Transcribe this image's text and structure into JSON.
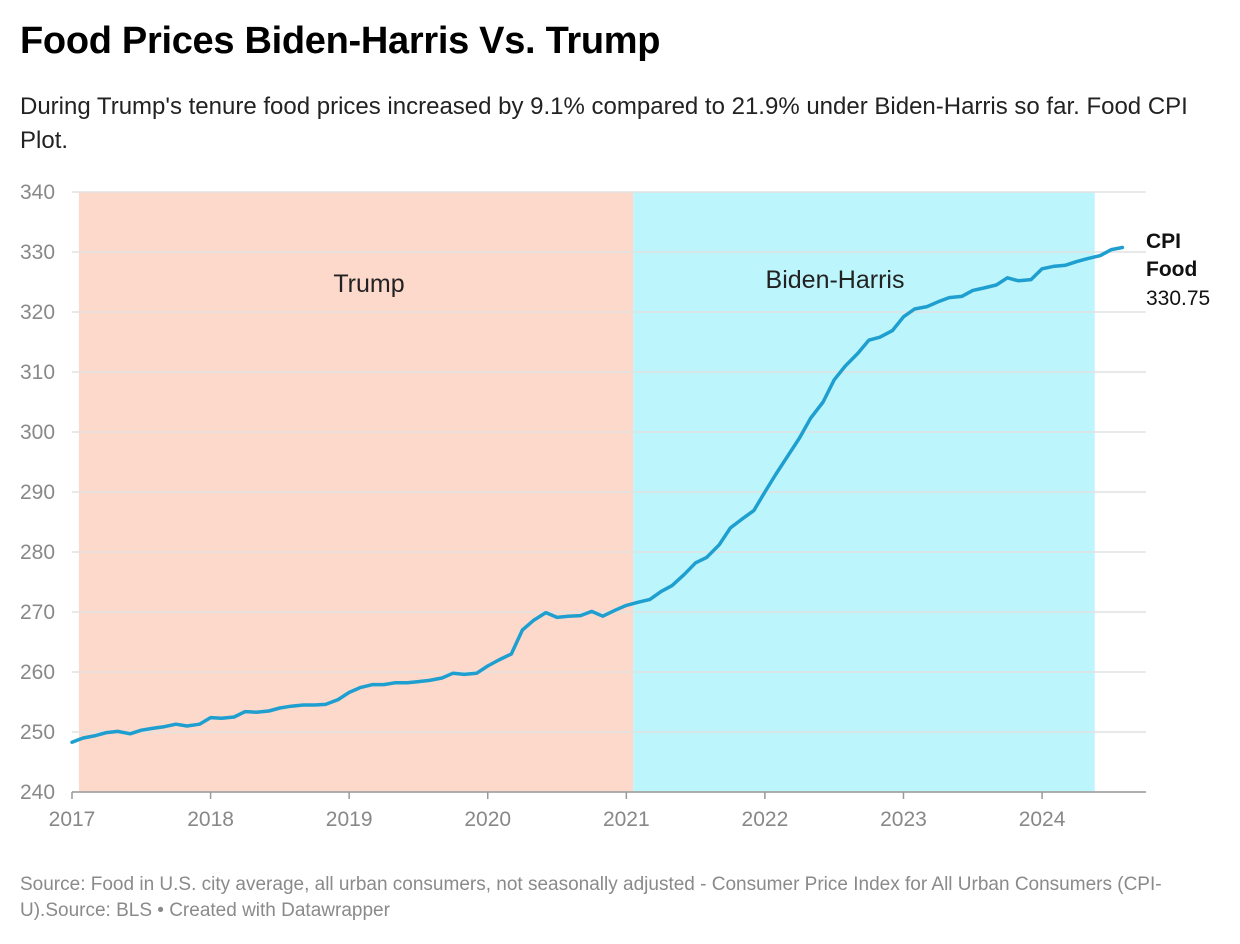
{
  "title": "Food Prices Biden-Harris Vs. Trump",
  "subtitle": "During Trump's tenure food prices increased by 9.1% compared to 21.9% under Biden-Harris so far. Food CPI Plot.",
  "source": "Source: Food in U.S. city average, all urban consumers, not seasonally adjusted - Consumer Price Index for All Urban Consumers (CPI-U).Source: BLS • Created with Datawrapper",
  "colors": {
    "line": "#1f9fcf",
    "trump_band": "#fdd9cc",
    "biden_band": "#bdf5fc",
    "grid": "#e2e2e2"
  },
  "chart_data": {
    "type": "line",
    "title": "Food Prices Biden-Harris Vs. Trump",
    "xlabel": "",
    "ylabel": "",
    "xlim": [
      2017.0,
      2024.75
    ],
    "ylim": [
      240,
      340
    ],
    "x_ticks": [
      2017,
      2018,
      2019,
      2020,
      2021,
      2022,
      2023,
      2024
    ],
    "y_ticks": [
      240,
      250,
      260,
      270,
      280,
      290,
      300,
      310,
      320,
      330,
      340
    ],
    "grid": true,
    "regions": [
      {
        "label": "Trump",
        "from": 2017.05,
        "to": 2021.05
      },
      {
        "label": "Biden-Harris",
        "from": 2021.05,
        "to": 2024.38
      }
    ],
    "series": [
      {
        "name": "CPI Food",
        "last_value": "330.75",
        "points": [
          [
            2017.0,
            248.3
          ],
          [
            2017.08,
            249.0
          ],
          [
            2017.17,
            249.4
          ],
          [
            2017.25,
            249.9
          ],
          [
            2017.33,
            250.1
          ],
          [
            2017.42,
            249.7
          ],
          [
            2017.5,
            250.3
          ],
          [
            2017.58,
            250.6
          ],
          [
            2017.67,
            250.9
          ],
          [
            2017.75,
            251.3
          ],
          [
            2017.83,
            251.0
          ],
          [
            2017.92,
            251.3
          ],
          [
            2018.0,
            252.4
          ],
          [
            2018.08,
            252.3
          ],
          [
            2018.17,
            252.5
          ],
          [
            2018.25,
            253.4
          ],
          [
            2018.33,
            253.3
          ],
          [
            2018.42,
            253.5
          ],
          [
            2018.5,
            254.0
          ],
          [
            2018.58,
            254.3
          ],
          [
            2018.67,
            254.5
          ],
          [
            2018.75,
            254.5
          ],
          [
            2018.83,
            254.6
          ],
          [
            2018.92,
            255.4
          ],
          [
            2019.0,
            256.6
          ],
          [
            2019.08,
            257.4
          ],
          [
            2019.17,
            257.9
          ],
          [
            2019.25,
            257.9
          ],
          [
            2019.33,
            258.2
          ],
          [
            2019.42,
            258.2
          ],
          [
            2019.5,
            258.4
          ],
          [
            2019.58,
            258.6
          ],
          [
            2019.67,
            259.0
          ],
          [
            2019.75,
            259.8
          ],
          [
            2019.83,
            259.6
          ],
          [
            2019.92,
            259.8
          ],
          [
            2020.0,
            261.0
          ],
          [
            2020.08,
            262.0
          ],
          [
            2020.17,
            263.0
          ],
          [
            2020.25,
            267.0
          ],
          [
            2020.33,
            268.6
          ],
          [
            2020.42,
            269.9
          ],
          [
            2020.5,
            269.1
          ],
          [
            2020.58,
            269.3
          ],
          [
            2020.67,
            269.4
          ],
          [
            2020.75,
            270.1
          ],
          [
            2020.83,
            269.3
          ],
          [
            2020.92,
            270.3
          ],
          [
            2021.0,
            271.1
          ],
          [
            2021.08,
            271.6
          ],
          [
            2021.17,
            272.1
          ],
          [
            2021.25,
            273.4
          ],
          [
            2021.33,
            274.4
          ],
          [
            2021.42,
            276.3
          ],
          [
            2021.5,
            278.2
          ],
          [
            2021.58,
            279.1
          ],
          [
            2021.67,
            281.2
          ],
          [
            2021.75,
            284.0
          ],
          [
            2021.83,
            285.4
          ],
          [
            2021.92,
            286.9
          ],
          [
            2022.0,
            290.0
          ],
          [
            2022.08,
            293.0
          ],
          [
            2022.17,
            296.2
          ],
          [
            2022.25,
            299.0
          ],
          [
            2022.33,
            302.3
          ],
          [
            2022.42,
            305.0
          ],
          [
            2022.5,
            308.7
          ],
          [
            2022.58,
            311.0
          ],
          [
            2022.67,
            313.1
          ],
          [
            2022.75,
            315.3
          ],
          [
            2022.83,
            315.8
          ],
          [
            2022.92,
            316.9
          ],
          [
            2023.0,
            319.2
          ],
          [
            2023.08,
            320.5
          ],
          [
            2023.17,
            320.9
          ],
          [
            2023.25,
            321.7
          ],
          [
            2023.33,
            322.4
          ],
          [
            2023.42,
            322.6
          ],
          [
            2023.5,
            323.6
          ],
          [
            2023.58,
            324.0
          ],
          [
            2023.67,
            324.5
          ],
          [
            2023.75,
            325.7
          ],
          [
            2023.83,
            325.2
          ],
          [
            2023.92,
            325.4
          ],
          [
            2024.0,
            327.2
          ],
          [
            2024.08,
            327.6
          ],
          [
            2024.17,
            327.8
          ],
          [
            2024.25,
            328.4
          ],
          [
            2024.33,
            328.9
          ],
          [
            2024.42,
            329.4
          ],
          [
            2024.5,
            330.4
          ],
          [
            2024.58,
            330.75
          ]
        ]
      }
    ]
  }
}
